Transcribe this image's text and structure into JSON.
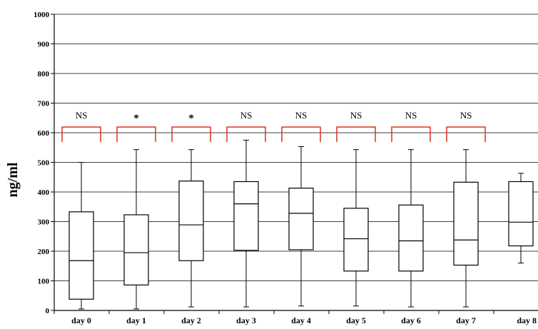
{
  "chart_data": {
    "type": "boxplot",
    "title": "",
    "xlabel": "",
    "ylabel": "ng/ml",
    "ylim": [
      0,
      1000
    ],
    "yticks": [
      0,
      100,
      200,
      300,
      400,
      500,
      600,
      700,
      800,
      900,
      1000
    ],
    "grid": true,
    "categories": [
      "day 0",
      "day 1",
      "day 2",
      "day 3",
      "day 4",
      "day 5",
      "day 6",
      "day 7",
      "day 8"
    ],
    "boxes": [
      {
        "min": 5,
        "q1": 38,
        "median": 168,
        "q3": 333,
        "max": 500
      },
      {
        "min": 5,
        "q1": 86,
        "median": 195,
        "q3": 323,
        "max": 543
      },
      {
        "min": 12,
        "q1": 168,
        "median": 289,
        "q3": 437,
        "max": 543
      },
      {
        "min": 12,
        "q1": 203,
        "median": 360,
        "q3": 435,
        "max": 575
      },
      {
        "min": 15,
        "q1": 205,
        "median": 328,
        "q3": 413,
        "max": 553
      },
      {
        "min": 15,
        "q1": 133,
        "median": 242,
        "q3": 345,
        "max": 543
      },
      {
        "min": 12,
        "q1": 133,
        "median": 235,
        "q3": 356,
        "max": 543
      },
      {
        "min": 12,
        "q1": 153,
        "median": 238,
        "q3": 433,
        "max": 543
      },
      {
        "min": 160,
        "q1": 218,
        "median": 298,
        "q3": 435,
        "max": 463
      }
    ],
    "significance": [
      {
        "label": "NS"
      },
      {
        "label": "*"
      },
      {
        "label": "*"
      },
      {
        "label": "NS"
      },
      {
        "label": "NS"
      },
      {
        "label": "NS"
      },
      {
        "label": "NS"
      },
      {
        "label": "NS"
      }
    ],
    "bracket_color": "#e0301e",
    "box_color": "#000000"
  }
}
